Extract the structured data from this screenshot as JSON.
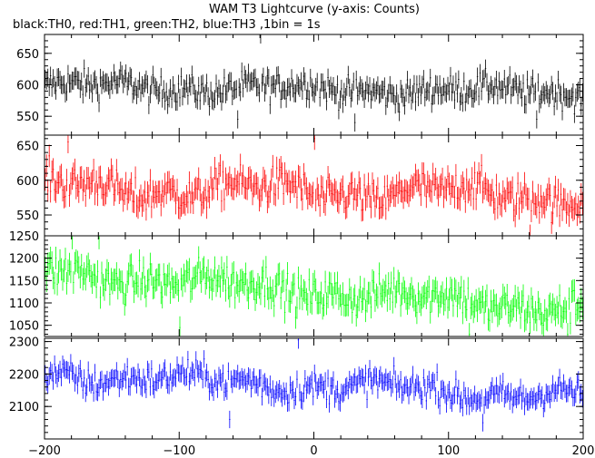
{
  "chart_data": {
    "type": "line",
    "title": "WAM T3 Lightcurve (y-axis: Counts)",
    "subtitle": "black:TH0, red:TH1, green:TH2, blue:TH3 ,1bin = 1s",
    "xlim": [
      -200,
      200
    ],
    "x_ticks": [
      "−200",
      "−100",
      "0",
      "100",
      "200"
    ],
    "x_tick_values": [
      -200,
      -100,
      0,
      100,
      200
    ],
    "grid": false,
    "panels": [
      {
        "series_label": "TH0",
        "color": "#000000",
        "ylim": [
          520,
          680
        ],
        "y_ticks": [
          550,
          600,
          650
        ],
        "mean_start": 598,
        "mean_end": 588,
        "noise": 16,
        "wiggle": 6,
        "spikes": [
          [
            -40,
            680
          ],
          [
            3,
            685
          ],
          [
            -57,
            545
          ],
          [
            30,
            540
          ],
          [
            165,
            545
          ]
        ]
      },
      {
        "series_label": "TH1",
        "color": "#ff0000",
        "ylim": [
          520,
          665
        ],
        "y_ticks": [
          550,
          600,
          650
        ],
        "mean_start": 590,
        "mean_end": 578,
        "noise": 18,
        "wiggle": 10,
        "spikes": [
          [
            -183,
            655
          ],
          [
            0,
            660
          ],
          [
            160,
            520
          ]
        ]
      },
      {
        "series_label": "TH2",
        "color": "#00ff00",
        "ylim": [
          1025,
          1250
        ],
        "y_ticks": [
          1050,
          1100,
          1150,
          1200,
          1250
        ],
        "mean_start": 1170,
        "mean_end": 1085,
        "noise": 28,
        "wiggle": 12,
        "spikes": [
          [
            -180,
            1245
          ],
          [
            -160,
            1245
          ],
          [
            -100,
            1045
          ],
          [
            115,
            1030
          ],
          [
            188,
            1030
          ]
        ]
      },
      {
        "series_label": "TH3",
        "color": "#0000ff",
        "ylim": [
          2000,
          2310
        ],
        "y_ticks": [
          2100,
          2200,
          2300
        ],
        "mean_start": 2200,
        "mean_end": 2130,
        "noise": 30,
        "wiggle": 15,
        "spikes": [
          [
            -12,
            2305
          ],
          [
            -63,
            2060
          ],
          [
            125,
            2050
          ]
        ]
      }
    ],
    "bin_seconds": 1,
    "n_bins": 400
  }
}
